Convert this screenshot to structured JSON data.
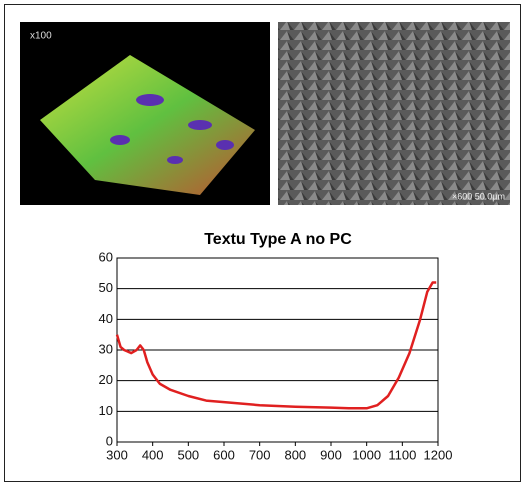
{
  "images": {
    "left_label": "x100",
    "right_label": "×600  50.0μm"
  },
  "chart_data": {
    "type": "line",
    "title": "Textu Type A no PC",
    "x": [
      300,
      310,
      320,
      340,
      355,
      365,
      375,
      385,
      400,
      420,
      450,
      500,
      550,
      600,
      700,
      800,
      900,
      950,
      1000,
      1030,
      1060,
      1090,
      1120,
      1150,
      1170,
      1185,
      1195
    ],
    "values": [
      35,
      31,
      30,
      29,
      30,
      31.5,
      30,
      26,
      22,
      19,
      17,
      15,
      13.5,
      13,
      12,
      11.5,
      11.2,
      11,
      11,
      12,
      15,
      21,
      29,
      40,
      49,
      52,
      52
    ],
    "color": "#e02020",
    "xlim": [
      300,
      1200
    ],
    "xticks": [
      300,
      400,
      500,
      600,
      700,
      800,
      900,
      1000,
      1100,
      1200
    ],
    "ylim": [
      0,
      60
    ],
    "yticks": [
      0,
      10,
      20,
      30,
      40,
      50,
      60
    ],
    "grid": true
  }
}
